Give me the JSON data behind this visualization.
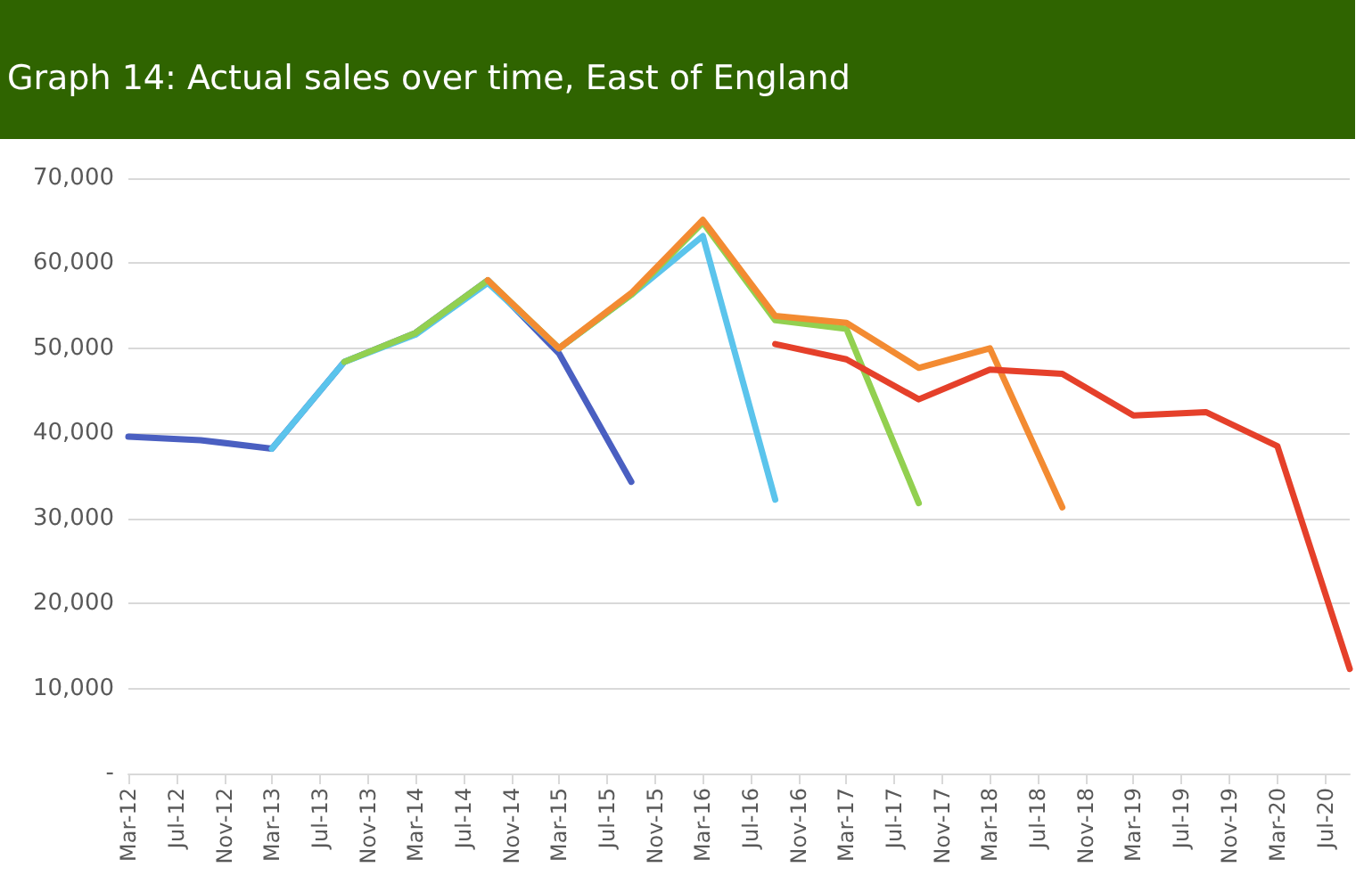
{
  "chart_data": {
    "type": "line",
    "title": "Graph 14: Actual sales over time, East of England",
    "x": [
      "2012-03",
      "2012-09",
      "2013-03",
      "2013-09",
      "2014-03",
      "2014-09",
      "2015-03",
      "2015-09",
      "2016-03",
      "2016-09",
      "2017-03",
      "2017-09",
      "2018-03",
      "2018-09",
      "2019-03",
      "2019-09",
      "2020-03",
      "2020-09"
    ],
    "series": [
      {
        "color": "#4a5fc1",
        "values": [
          39600,
          39200,
          38200,
          48400,
          51800,
          58000,
          49400,
          34300,
          null,
          null,
          null,
          null,
          null,
          null,
          null,
          null,
          null,
          null
        ]
      },
      {
        "color": "#5bc4ec",
        "values": [
          null,
          null,
          38200,
          48400,
          51600,
          57700,
          50000,
          56300,
          63200,
          32200,
          null,
          null,
          null,
          null,
          null,
          null,
          null,
          null
        ]
      },
      {
        "color": "#92d050",
        "values": [
          null,
          null,
          null,
          48400,
          51800,
          58000,
          50000,
          56300,
          64800,
          53300,
          52300,
          31800,
          null,
          null,
          null,
          null,
          null,
          null
        ]
      },
      {
        "color": "#f38b32",
        "values": [
          null,
          null,
          null,
          null,
          null,
          58000,
          50000,
          56500,
          65100,
          53800,
          53000,
          47700,
          50000,
          31300,
          null,
          null,
          null,
          null
        ]
      },
      {
        "color": "#e5402a",
        "values": [
          null,
          null,
          null,
          null,
          null,
          null,
          null,
          null,
          null,
          50500,
          48700,
          44000,
          47500,
          47000,
          42100,
          42500,
          38500,
          12300
        ]
      }
    ],
    "xlim": [
      "2012-03",
      "2020-09"
    ],
    "xticks": [
      {
        "value": "2012-03",
        "label": "Mar-12"
      },
      {
        "value": "2012-07",
        "label": "Jul-12"
      },
      {
        "value": "2012-11",
        "label": "Nov-12"
      },
      {
        "value": "2013-03",
        "label": "Mar-13"
      },
      {
        "value": "2013-07",
        "label": "Jul-13"
      },
      {
        "value": "2013-11",
        "label": "Nov-13"
      },
      {
        "value": "2014-03",
        "label": "Mar-14"
      },
      {
        "value": "2014-07",
        "label": "Jul-14"
      },
      {
        "value": "2014-11",
        "label": "Nov-14"
      },
      {
        "value": "2015-03",
        "label": "Mar-15"
      },
      {
        "value": "2015-07",
        "label": "Jul-15"
      },
      {
        "value": "2015-11",
        "label": "Nov-15"
      },
      {
        "value": "2016-03",
        "label": "Mar-16"
      },
      {
        "value": "2016-07",
        "label": "Jul-16"
      },
      {
        "value": "2016-11",
        "label": "Nov-16"
      },
      {
        "value": "2017-03",
        "label": "Mar-17"
      },
      {
        "value": "2017-07",
        "label": "Jul-17"
      },
      {
        "value": "2017-11",
        "label": "Nov-17"
      },
      {
        "value": "2018-03",
        "label": "Mar-18"
      },
      {
        "value": "2018-07",
        "label": "Jul-18"
      },
      {
        "value": "2018-11",
        "label": "Nov-18"
      },
      {
        "value": "2019-03",
        "label": "Mar-19"
      },
      {
        "value": "2019-07",
        "label": "Jul-19"
      },
      {
        "value": "2019-11",
        "label": "Nov-19"
      },
      {
        "value": "2020-03",
        "label": "Mar-20"
      },
      {
        "value": "2020-07",
        "label": "Jul-20"
      }
    ],
    "ylim": [
      0,
      70000
    ],
    "yticks": [
      {
        "value": 0,
        "label": "-"
      },
      {
        "value": 10000,
        "label": "10,000"
      },
      {
        "value": 20000,
        "label": "20,000"
      },
      {
        "value": 30000,
        "label": "30,000"
      },
      {
        "value": 40000,
        "label": "40,000"
      },
      {
        "value": 50000,
        "label": "50,000"
      },
      {
        "value": 60000,
        "label": "60,000"
      },
      {
        "value": 70000,
        "label": "70,000"
      }
    ],
    "grid": "y",
    "marker": "none",
    "line_style": "solid"
  }
}
